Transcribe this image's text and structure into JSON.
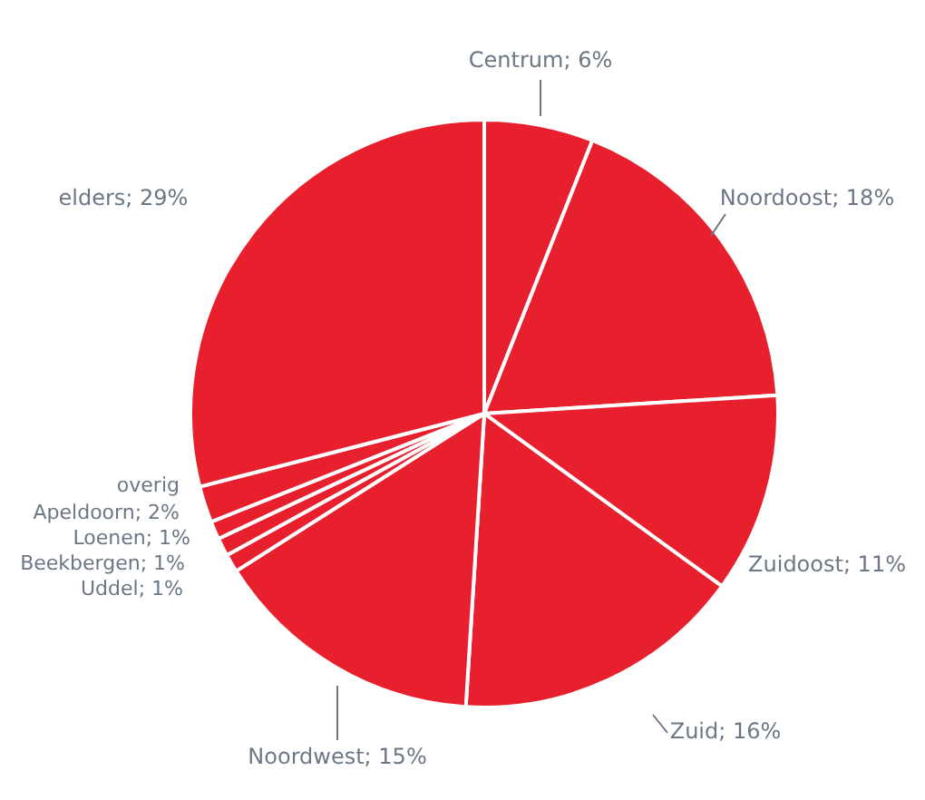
{
  "chart_data": {
    "type": "pie",
    "categories": [
      "Centrum",
      "Noordoost",
      "Zuidoost",
      "Zuid",
      "Noordwest",
      "Uddel",
      "Beekbergen",
      "Loenen",
      "overig Apeldoorn",
      "elders"
    ],
    "values": [
      6,
      18,
      11,
      16,
      15,
      1,
      1,
      1,
      2,
      29
    ],
    "value_labels": [
      "6%",
      "18%",
      "11%",
      "16%",
      "15%",
      "1%",
      "1%",
      "1%",
      "2%",
      "29%"
    ],
    "colors": [
      "#e8202e",
      "#e8202e",
      "#e8202e",
      "#e8202e",
      "#e8202e",
      "#e8202e",
      "#e8202e",
      "#e8202e",
      "#e8202e",
      "#e8202e"
    ],
    "legend": false
  }
}
